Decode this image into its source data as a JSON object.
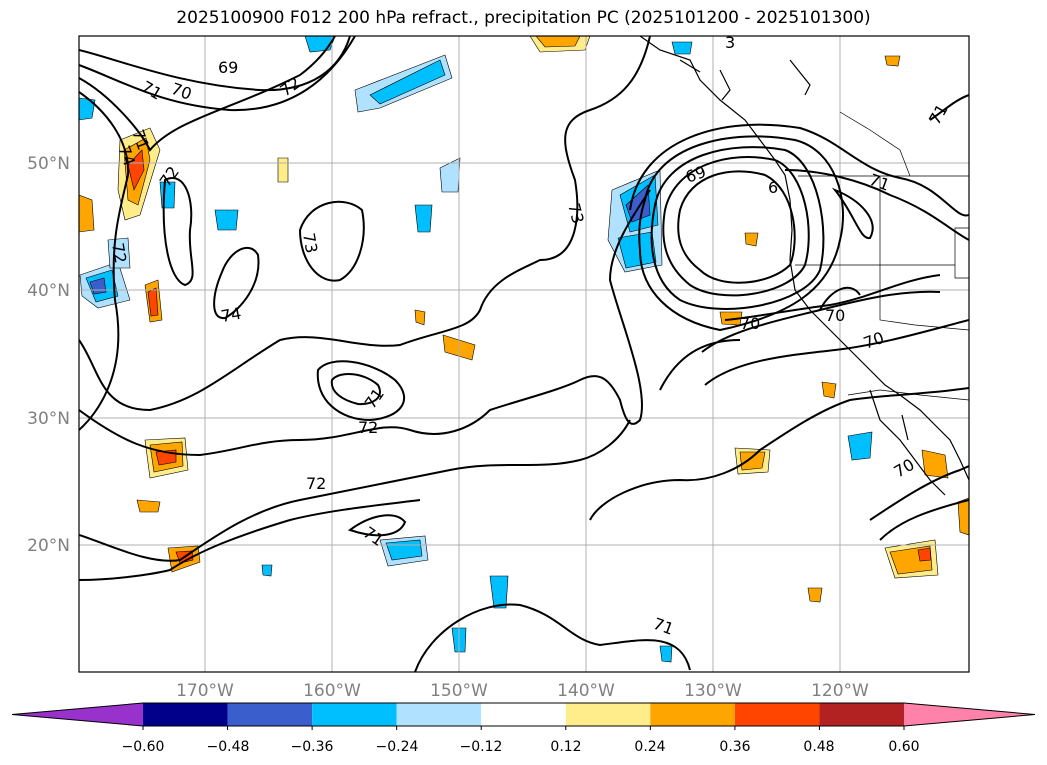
{
  "title": "2025100900 F012 200 hPa refract., precipitation PC (2025101200 - 2025101300)",
  "lat_labels": [
    "50°N",
    "40°N",
    "30°N",
    "20°N"
  ],
  "lon_labels": [
    "170°W",
    "160°W",
    "150°W",
    "140°W",
    "130°W",
    "120°W"
  ],
  "contour_labels": [
    "69",
    "70",
    "71",
    "72",
    "71",
    "74",
    "72",
    "72",
    "73",
    "74",
    "71",
    "72",
    "72",
    "71",
    "73",
    "69",
    "6",
    "71",
    "71",
    "70",
    "70",
    "70",
    "70",
    "71",
    "3"
  ],
  "colorbar": {
    "ticks": [
      "−0.60",
      "−0.48",
      "−0.36",
      "−0.24",
      "−0.12",
      "0.12",
      "0.24",
      "0.36",
      "0.48",
      "0.60"
    ],
    "colors": [
      "#9932cc",
      "#00008b",
      "#3a5fcd",
      "#00bfff",
      "#b0e2ff",
      "#ffffff",
      "#ffec8b",
      "#ffa500",
      "#ff4500",
      "#b22222",
      "#ff82ab"
    ]
  }
}
